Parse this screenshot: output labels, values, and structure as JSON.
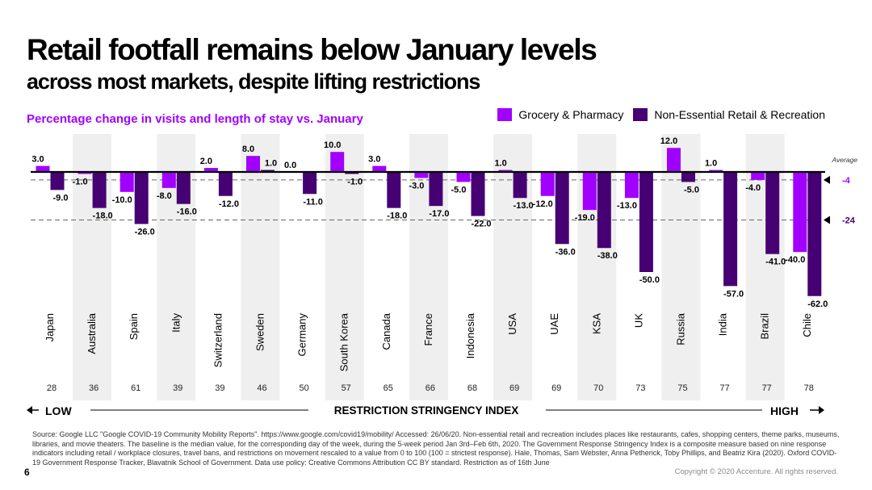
{
  "title": "Retail footfall remains below January levels",
  "subtitle": "across most markets, despite lifting restrictions",
  "footnote": "Source: Google LLC \"Google COVID-19 Community Mobility Reports\". https://www.google.com/covid19/mobility/ Accessed: 26/06/20. Non-essential retail and recreation includes places like restaurants, cafes, shopping centers, theme parks, museums, libraries, and movie theaters. The baseline is the median value, for the corresponding day of the week, during the 5-week period Jan 3rd–Feb 6th, 2020. The Government Response Stringency Index is a composite measure based on nine response indicators including retail / workplace closures, travel bans, and restrictions on movement rescaled to a value from 0 to 100 (100 = strictest response). Hale, Thomas, Sam Webster, Anna Petherick, Toby Phillips, and Beatriz Kira (2020). Oxford COVID-19 Government Response Tracker, Blavatnik School of Government. Data use policy: Creative Commons Attribution CC BY standard. Restriction as of 16th June",
  "page_number": "6",
  "copyright": "Copyright © 2020 Accenture. All rights reserved.",
  "colors": {
    "grocery": "#a100ff",
    "non_essential": "#460073",
    "band": "#efefef",
    "text": "#000000"
  },
  "chart_data": {
    "type": "bar",
    "title": "Percentage change in visits and length of stay vs. January",
    "categories": [
      "Japan",
      "Australia",
      "Spain",
      "Italy",
      "Switzerland",
      "Sweden",
      "Germany",
      "South Korea",
      "Canada",
      "France",
      "Indonesia",
      "USA",
      "UAE",
      "KSA",
      "UK",
      "Russia",
      "India",
      "Brazil",
      "Chile"
    ],
    "stringency_index": [
      28,
      36,
      61,
      39,
      39,
      46,
      50,
      57,
      65,
      66,
      68,
      69,
      69,
      70,
      73,
      75,
      77,
      77,
      78
    ],
    "series": [
      {
        "name": "Grocery & Pharmacy",
        "color": "#a100ff",
        "values": [
          3.0,
          -1.0,
          -10.0,
          -8.0,
          2.0,
          8.0,
          0.0,
          10.0,
          3.0,
          -3.0,
          -5.0,
          1.0,
          -12.0,
          -19.0,
          -13.0,
          12.0,
          1.0,
          -4.0,
          -40.0
        ]
      },
      {
        "name": "Non-Essential Retail &  Recreation",
        "color": "#460073",
        "values": [
          -9.0,
          -18.0,
          -26.0,
          -16.0,
          -12.0,
          1.0,
          -11.0,
          -1.0,
          -18.0,
          -17.0,
          -22.0,
          -13.0,
          -36.0,
          -38.0,
          -50.0,
          -5.0,
          -57.0,
          -41.0,
          -62.0
        ]
      }
    ],
    "averages": [
      {
        "label": "-4",
        "value": -4,
        "color": "#a100ff"
      },
      {
        "label": "-24",
        "value": -24,
        "color": "#460073"
      }
    ],
    "average_label": "Average",
    "xaxis_title": "RESTRICTION STRINGENCY INDEX",
    "low_label": "LOW",
    "high_label": "HIGH",
    "ylim": [
      -62,
      13
    ],
    "legend_position": "top-right"
  }
}
